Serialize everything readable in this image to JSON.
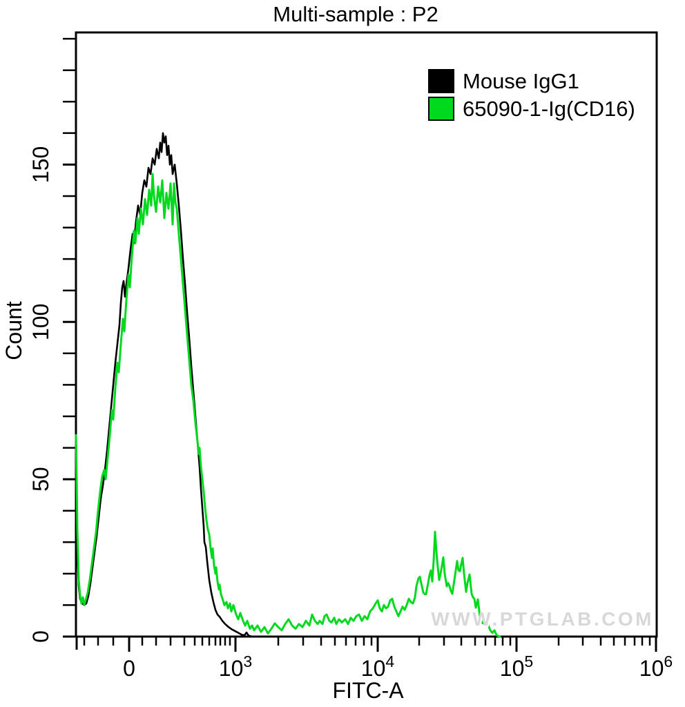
{
  "chart_data": {
    "type": "line",
    "chart_kind": "flow-cytometry histogram overlay",
    "title": "Multi-sample : P2",
    "watermark": "WWW.PTGLAB.COM",
    "background": "#ffffff",
    "axis_color": "#000000",
    "watermark_color": "#d8d8d8",
    "legend_position": "top-right",
    "x_axis": {
      "label": "FITC-A",
      "scale": "biexponential (logicle)",
      "axis_pos_domain": [
        110,
        951
      ],
      "major_ticks": [
        {
          "text": "0",
          "sup": "",
          "pos": 187
        },
        {
          "text": "10",
          "sup": "3",
          "pos": 341
        },
        {
          "text": "10",
          "sup": "4",
          "pos": 547
        },
        {
          "text": "10",
          "sup": "5",
          "pos": 748
        },
        {
          "text": "10",
          "sup": "6",
          "pos": 950
        }
      ],
      "minor_tick_pos": [
        122,
        142,
        164,
        206,
        226,
        247,
        267,
        282,
        293,
        303,
        312,
        319,
        326,
        333,
        403,
        439,
        465,
        485,
        501,
        515,
        527,
        538,
        607,
        643,
        668,
        688,
        703,
        717,
        728,
        739,
        809,
        844,
        870,
        889,
        905,
        919,
        930,
        941
      ]
    },
    "y_axis": {
      "label": "Count",
      "min": 0,
      "max": 192,
      "major_ticks": [
        0,
        50,
        100,
        150
      ],
      "minor_step": 10
    },
    "series": [
      {
        "name": "Mouse IgG1",
        "color": "#000000",
        "stroke_width": 2.6,
        "points": [
          [
            110,
            55
          ],
          [
            111,
            42
          ],
          [
            112,
            28
          ],
          [
            114,
            16
          ],
          [
            116,
            12
          ],
          [
            119,
            10.5
          ],
          [
            122,
            10
          ],
          [
            125,
            10.5
          ],
          [
            128,
            13
          ],
          [
            131,
            17
          ],
          [
            134,
            22
          ],
          [
            137,
            27
          ],
          [
            140,
            32
          ],
          [
            143,
            38
          ],
          [
            146,
            44
          ],
          [
            149,
            48
          ],
          [
            152,
            53
          ],
          [
            155,
            59
          ],
          [
            158,
            66
          ],
          [
            161,
            73
          ],
          [
            164,
            80
          ],
          [
            167,
            87
          ],
          [
            170,
            93
          ],
          [
            173,
            99
          ],
          [
            175,
            106
          ],
          [
            177,
            111
          ],
          [
            179,
            113
          ],
          [
            181,
            108
          ],
          [
            183,
            112
          ],
          [
            186,
            117
          ],
          [
            189,
            123
          ],
          [
            192,
            128
          ],
          [
            194,
            125
          ],
          [
            197,
            132
          ],
          [
            200,
            137
          ],
          [
            203,
            134
          ],
          [
            206,
            141
          ],
          [
            209,
            145
          ],
          [
            212,
            143
          ],
          [
            215,
            149
          ],
          [
            218,
            147
          ],
          [
            221,
            152
          ],
          [
            224,
            150
          ],
          [
            227,
            155
          ],
          [
            230,
            152
          ],
          [
            232,
            157
          ],
          [
            234,
            154
          ],
          [
            236,
            160
          ],
          [
            238,
            157
          ],
          [
            240,
            159
          ],
          [
            242,
            153
          ],
          [
            244,
            156
          ],
          [
            246,
            150
          ],
          [
            248,
            153
          ],
          [
            250,
            147
          ],
          [
            253,
            150
          ],
          [
            256,
            144
          ],
          [
            259,
            137
          ],
          [
            262,
            129
          ],
          [
            265,
            120
          ],
          [
            268,
            112
          ],
          [
            271,
            103
          ],
          [
            274,
            95
          ],
          [
            277,
            86
          ],
          [
            280,
            78
          ],
          [
            283,
            70
          ],
          [
            286,
            62
          ],
          [
            289,
            54
          ],
          [
            291,
            47
          ],
          [
            293,
            41
          ],
          [
            295,
            35
          ],
          [
            296,
            30
          ],
          [
            298,
            28.5
          ],
          [
            300,
            24
          ],
          [
            303,
            18
          ],
          [
            306,
            14
          ],
          [
            309,
            11
          ],
          [
            312,
            8.5
          ],
          [
            315,
            7
          ],
          [
            318,
            6.3
          ],
          [
            322,
            5
          ],
          [
            326,
            4
          ],
          [
            330,
            3.2
          ],
          [
            335,
            2.4
          ],
          [
            340,
            1.8
          ],
          [
            345,
            1.2
          ],
          [
            350,
            0.6
          ],
          [
            354,
            0.4
          ],
          [
            357,
            1.3
          ],
          [
            360,
            0.3
          ],
          [
            365,
            0
          ]
        ]
      },
      {
        "name": "65090-1-Ig(CD16)",
        "color": "#00d91e",
        "stroke_width": 3,
        "points": [
          [
            110,
            64
          ],
          [
            111,
            50
          ],
          [
            112,
            34
          ],
          [
            114,
            18
          ],
          [
            116,
            13
          ],
          [
            118,
            10.5
          ],
          [
            120,
            12.5
          ],
          [
            122,
            10
          ],
          [
            124,
            11.5
          ],
          [
            127,
            14
          ],
          [
            130,
            18
          ],
          [
            133,
            23
          ],
          [
            136,
            28
          ],
          [
            139,
            33
          ],
          [
            142,
            40
          ],
          [
            145,
            46
          ],
          [
            148,
            51
          ],
          [
            151,
            53
          ],
          [
            153,
            50
          ],
          [
            156,
            57
          ],
          [
            159,
            64
          ],
          [
            162,
            72
          ],
          [
            164,
            69
          ],
          [
            167,
            79
          ],
          [
            170,
            87
          ],
          [
            172,
            84
          ],
          [
            175,
            93
          ],
          [
            178,
            101
          ],
          [
            180,
            97
          ],
          [
            183,
            107
          ],
          [
            186,
            115
          ],
          [
            188,
            111
          ],
          [
            191,
            121
          ],
          [
            194,
            129
          ],
          [
            196,
            125
          ],
          [
            199,
            133
          ],
          [
            201,
            128
          ],
          [
            204,
            136
          ],
          [
            207,
            131
          ],
          [
            210,
            139
          ],
          [
            213,
            134
          ],
          [
            216,
            142
          ],
          [
            219,
            137
          ],
          [
            221,
            147
          ],
          [
            223,
            140
          ],
          [
            226,
            135
          ],
          [
            229,
            143
          ],
          [
            232,
            138
          ],
          [
            235,
            145
          ],
          [
            238,
            133
          ],
          [
            241,
            141
          ],
          [
            244,
            136
          ],
          [
            247,
            144
          ],
          [
            250,
            131
          ],
          [
            252,
            144
          ],
          [
            254,
            138
          ],
          [
            256,
            136
          ],
          [
            259,
            128
          ],
          [
            262,
            120
          ],
          [
            265,
            112
          ],
          [
            268,
            104
          ],
          [
            271,
            96
          ],
          [
            274,
            88
          ],
          [
            277,
            80
          ],
          [
            280,
            75
          ],
          [
            283,
            68
          ],
          [
            286,
            62
          ],
          [
            288,
            58
          ],
          [
            289,
            60
          ],
          [
            291,
            54
          ],
          [
            293,
            50
          ],
          [
            295,
            46
          ],
          [
            297,
            41
          ],
          [
            299,
            37
          ],
          [
            301,
            34
          ],
          [
            303,
            32.5
          ],
          [
            305,
            28
          ],
          [
            307,
            25
          ],
          [
            308,
            28
          ],
          [
            310,
            22.5
          ],
          [
            312,
            20
          ],
          [
            313,
            22
          ],
          [
            315,
            17.5
          ],
          [
            317,
            15
          ],
          [
            318,
            16.5
          ],
          [
            320,
            13.5
          ],
          [
            323,
            11.5
          ],
          [
            325,
            10
          ],
          [
            328,
            11
          ],
          [
            330,
            9
          ],
          [
            333,
            10.5
          ],
          [
            335,
            8
          ],
          [
            338,
            10
          ],
          [
            342,
            7
          ],
          [
            345,
            5.5
          ],
          [
            348,
            7.5
          ],
          [
            352,
            5
          ],
          [
            355,
            3.5
          ],
          [
            358,
            5
          ],
          [
            362,
            2.5
          ],
          [
            365,
            3.5
          ],
          [
            368,
            2
          ],
          [
            373,
            3.5
          ],
          [
            378,
            1.5
          ],
          [
            383,
            3
          ],
          [
            388,
            1
          ],
          [
            393,
            2.5
          ],
          [
            398,
            4.2
          ],
          [
            403,
            3
          ],
          [
            408,
            2
          ],
          [
            413,
            4
          ],
          [
            418,
            5.5
          ],
          [
            423,
            3.5
          ],
          [
            428,
            2.5
          ],
          [
            433,
            4
          ],
          [
            438,
            3
          ],
          [
            443,
            5
          ],
          [
            448,
            3.5
          ],
          [
            452,
            7
          ],
          [
            456,
            5
          ],
          [
            460,
            4
          ],
          [
            463,
            5
          ],
          [
            467,
            4
          ],
          [
            470,
            6.5
          ],
          [
            473,
            7
          ],
          [
            477,
            5
          ],
          [
            480,
            4.5
          ],
          [
            484,
            6
          ],
          [
            487,
            4
          ],
          [
            491,
            5.5
          ],
          [
            495,
            4.5
          ],
          [
            500,
            5.5
          ],
          [
            504,
            4
          ],
          [
            508,
            6
          ],
          [
            512,
            5
          ],
          [
            516,
            6.5
          ],
          [
            520,
            7
          ],
          [
            524,
            5
          ],
          [
            528,
            6.5
          ],
          [
            532,
            5.5
          ],
          [
            536,
            8
          ],
          [
            540,
            9
          ],
          [
            544,
            10.5
          ],
          [
            547,
            11.5
          ],
          [
            550,
            9
          ],
          [
            553,
            8
          ],
          [
            556,
            10
          ],
          [
            559,
            9
          ],
          [
            562,
            9.5
          ],
          [
            565,
            11.5
          ],
          [
            568,
            12
          ],
          [
            571,
            9.5
          ],
          [
            574,
            8
          ],
          [
            577,
            6.5
          ],
          [
            580,
            8
          ],
          [
            583,
            9.5
          ],
          [
            586,
            8.5
          ],
          [
            589,
            10
          ],
          [
            592,
            12
          ],
          [
            595,
            11
          ],
          [
            598,
            10.5
          ],
          [
            601,
            12.5
          ],
          [
            603,
            16
          ],
          [
            606,
            18.5
          ],
          [
            608,
            19
          ],
          [
            611,
            16
          ],
          [
            613,
            14
          ],
          [
            615,
            13.5
          ],
          [
            617,
            13.5
          ],
          [
            620,
            17
          ],
          [
            622,
            19.5
          ],
          [
            624,
            21
          ],
          [
            626,
            17.5
          ],
          [
            628,
            24
          ],
          [
            630,
            33.3
          ],
          [
            632,
            27
          ],
          [
            634,
            22
          ],
          [
            636,
            18
          ],
          [
            638,
            20
          ],
          [
            640,
            22.5
          ],
          [
            642,
            25.2
          ],
          [
            644,
            20
          ],
          [
            647,
            16
          ],
          [
            649,
            17
          ],
          [
            651,
            16
          ],
          [
            653,
            14.5
          ],
          [
            655,
            13.6
          ],
          [
            658,
            18
          ],
          [
            660,
            21
          ],
          [
            662,
            24
          ],
          [
            664,
            21
          ],
          [
            666,
            20.8
          ],
          [
            668,
            23
          ],
          [
            670,
            25
          ],
          [
            672,
            20
          ],
          [
            675,
            14.2
          ],
          [
            677,
            17
          ],
          [
            680,
            19.7
          ],
          [
            683,
            13.6
          ],
          [
            685,
            12.5
          ],
          [
            687,
            12
          ],
          [
            689,
            9.2
          ],
          [
            692,
            11.8
          ],
          [
            695,
            6.3
          ],
          [
            698,
            4.4
          ],
          [
            701,
            4.1
          ],
          [
            704,
            4.2
          ],
          [
            707,
            3.7
          ],
          [
            710,
            2
          ],
          [
            713,
            1.2
          ],
          [
            716,
            2
          ],
          [
            719,
            0.5
          ],
          [
            721,
            0.2
          ],
          [
            724,
            0
          ]
        ]
      }
    ]
  }
}
